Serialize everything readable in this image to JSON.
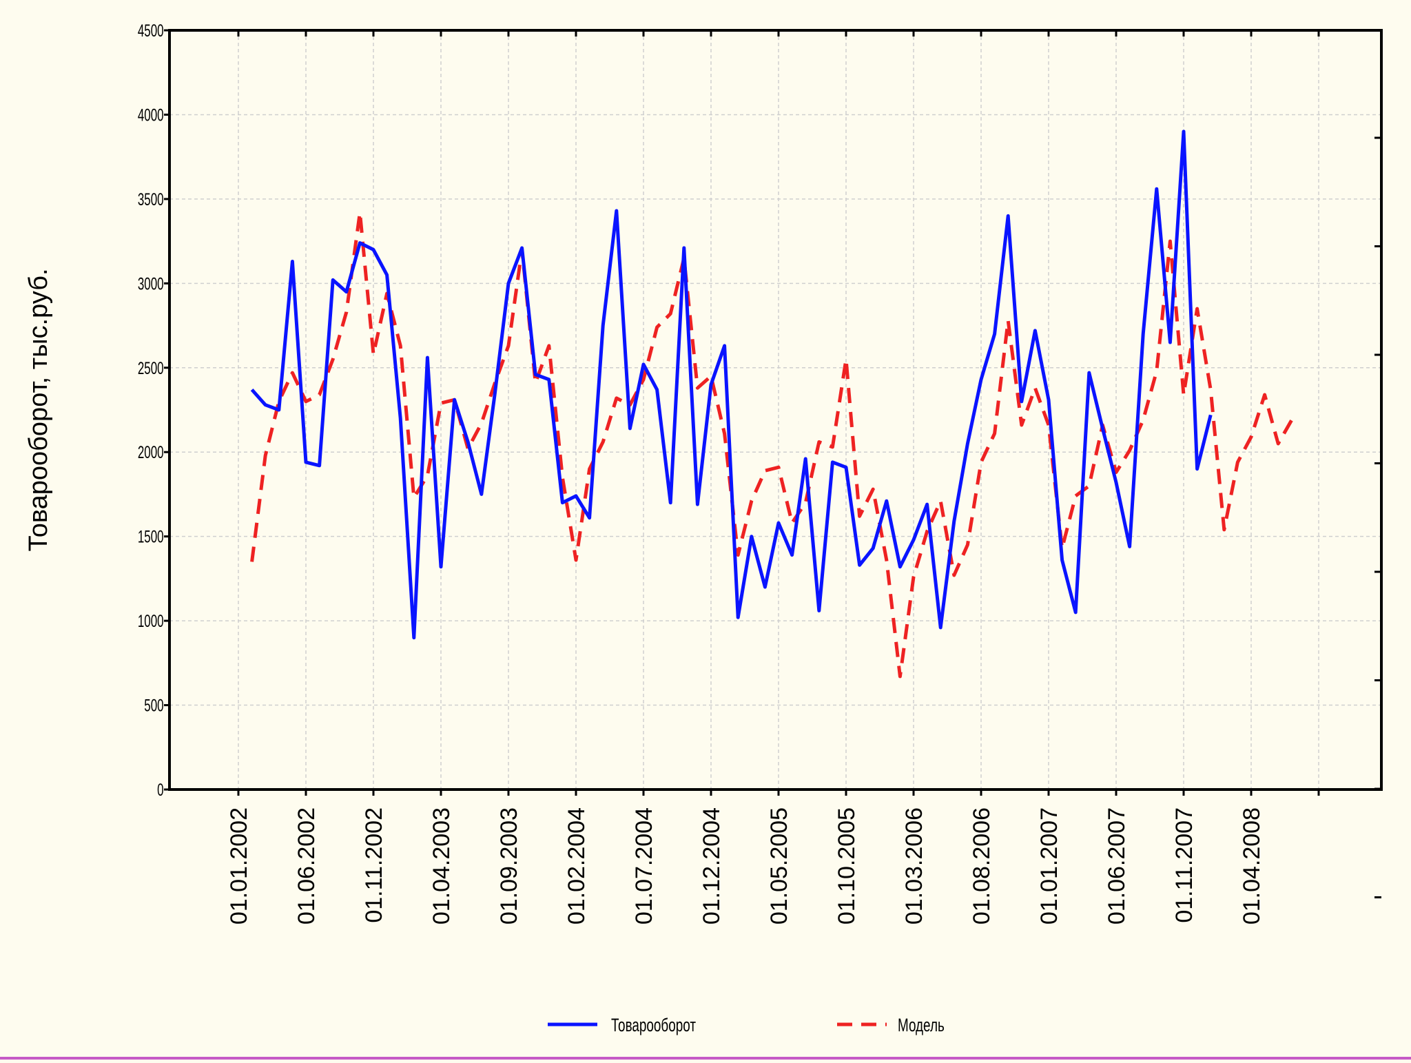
{
  "chart_data": {
    "type": "line",
    "title": "",
    "xlabel": "",
    "ylabel": "Товарооборот, тыс.руб.",
    "ylim": [
      0,
      4500
    ],
    "yticks": [
      "0",
      "500",
      "1000",
      "1500",
      "2000",
      "2500",
      "3000",
      "3500",
      "4000",
      "4500"
    ],
    "xticks": [
      "01.01.2002",
      "01.06.2002",
      "01.11.2002",
      "01.04.2003",
      "01.09.2003",
      "01.02.2004",
      "01.07.2004",
      "01.12.2004",
      "01.05.2005",
      "01.10.2005",
      "01.03.2006",
      "01.08.2006",
      "01.01.2007",
      "01.06.2007",
      "01.11.2007",
      "01.04.2008"
    ],
    "grid": true,
    "legend": "bottom",
    "x_unit": "month",
    "x_start": "2002-01",
    "series": [
      {
        "name": "Товарооборот",
        "color": "#0a14ff",
        "dash": "solid",
        "start": "2002-02",
        "values": [
          2370,
          2280,
          2250,
          3130,
          1940,
          1920,
          3020,
          2950,
          3240,
          3200,
          3050,
          2200,
          900,
          2560,
          1320,
          2310,
          2060,
          1750,
          2350,
          3000,
          3210,
          2460,
          2430,
          1700,
          1740,
          1610,
          2750,
          3430,
          2140,
          2520,
          2370,
          1700,
          3210,
          1690,
          2400,
          2630,
          1020,
          1500,
          1200,
          1580,
          1390,
          1960,
          1060,
          1940,
          1910,
          1330,
          1430,
          1710,
          1320,
          1480,
          1690,
          960,
          1590,
          2050,
          2430,
          2700,
          3400,
          2300,
          2720,
          2310,
          1360,
          1050,
          2470,
          2140,
          1820,
          1440,
          2700,
          3560,
          2650,
          3900,
          1900,
          2220
        ]
      },
      {
        "name": "Модель",
        "color": "#ee2222",
        "dash": "dashed",
        "start": "2002-02",
        "values": [
          1350,
          1980,
          2300,
          2470,
          2300,
          2340,
          2550,
          2830,
          3420,
          2580,
          2940,
          2630,
          1730,
          1860,
          2290,
          2310,
          2020,
          2170,
          2410,
          2630,
          3200,
          2410,
          2630,
          1850,
          1360,
          1900,
          2060,
          2320,
          2280,
          2430,
          2740,
          2820,
          3150,
          2380,
          2450,
          2110,
          1390,
          1710,
          1890,
          1910,
          1580,
          1700,
          2060,
          2030,
          2550,
          1620,
          1780,
          1360,
          670,
          1260,
          1530,
          1710,
          1270,
          1450,
          1940,
          2110,
          2780,
          2160,
          2380,
          2160,
          1430,
          1740,
          1800,
          2160,
          1880,
          2010,
          2190,
          2480,
          3250,
          2340,
          2850,
          2370,
          1540,
          1940,
          2090,
          2340,
          2050,
          2190
        ]
      }
    ]
  }
}
